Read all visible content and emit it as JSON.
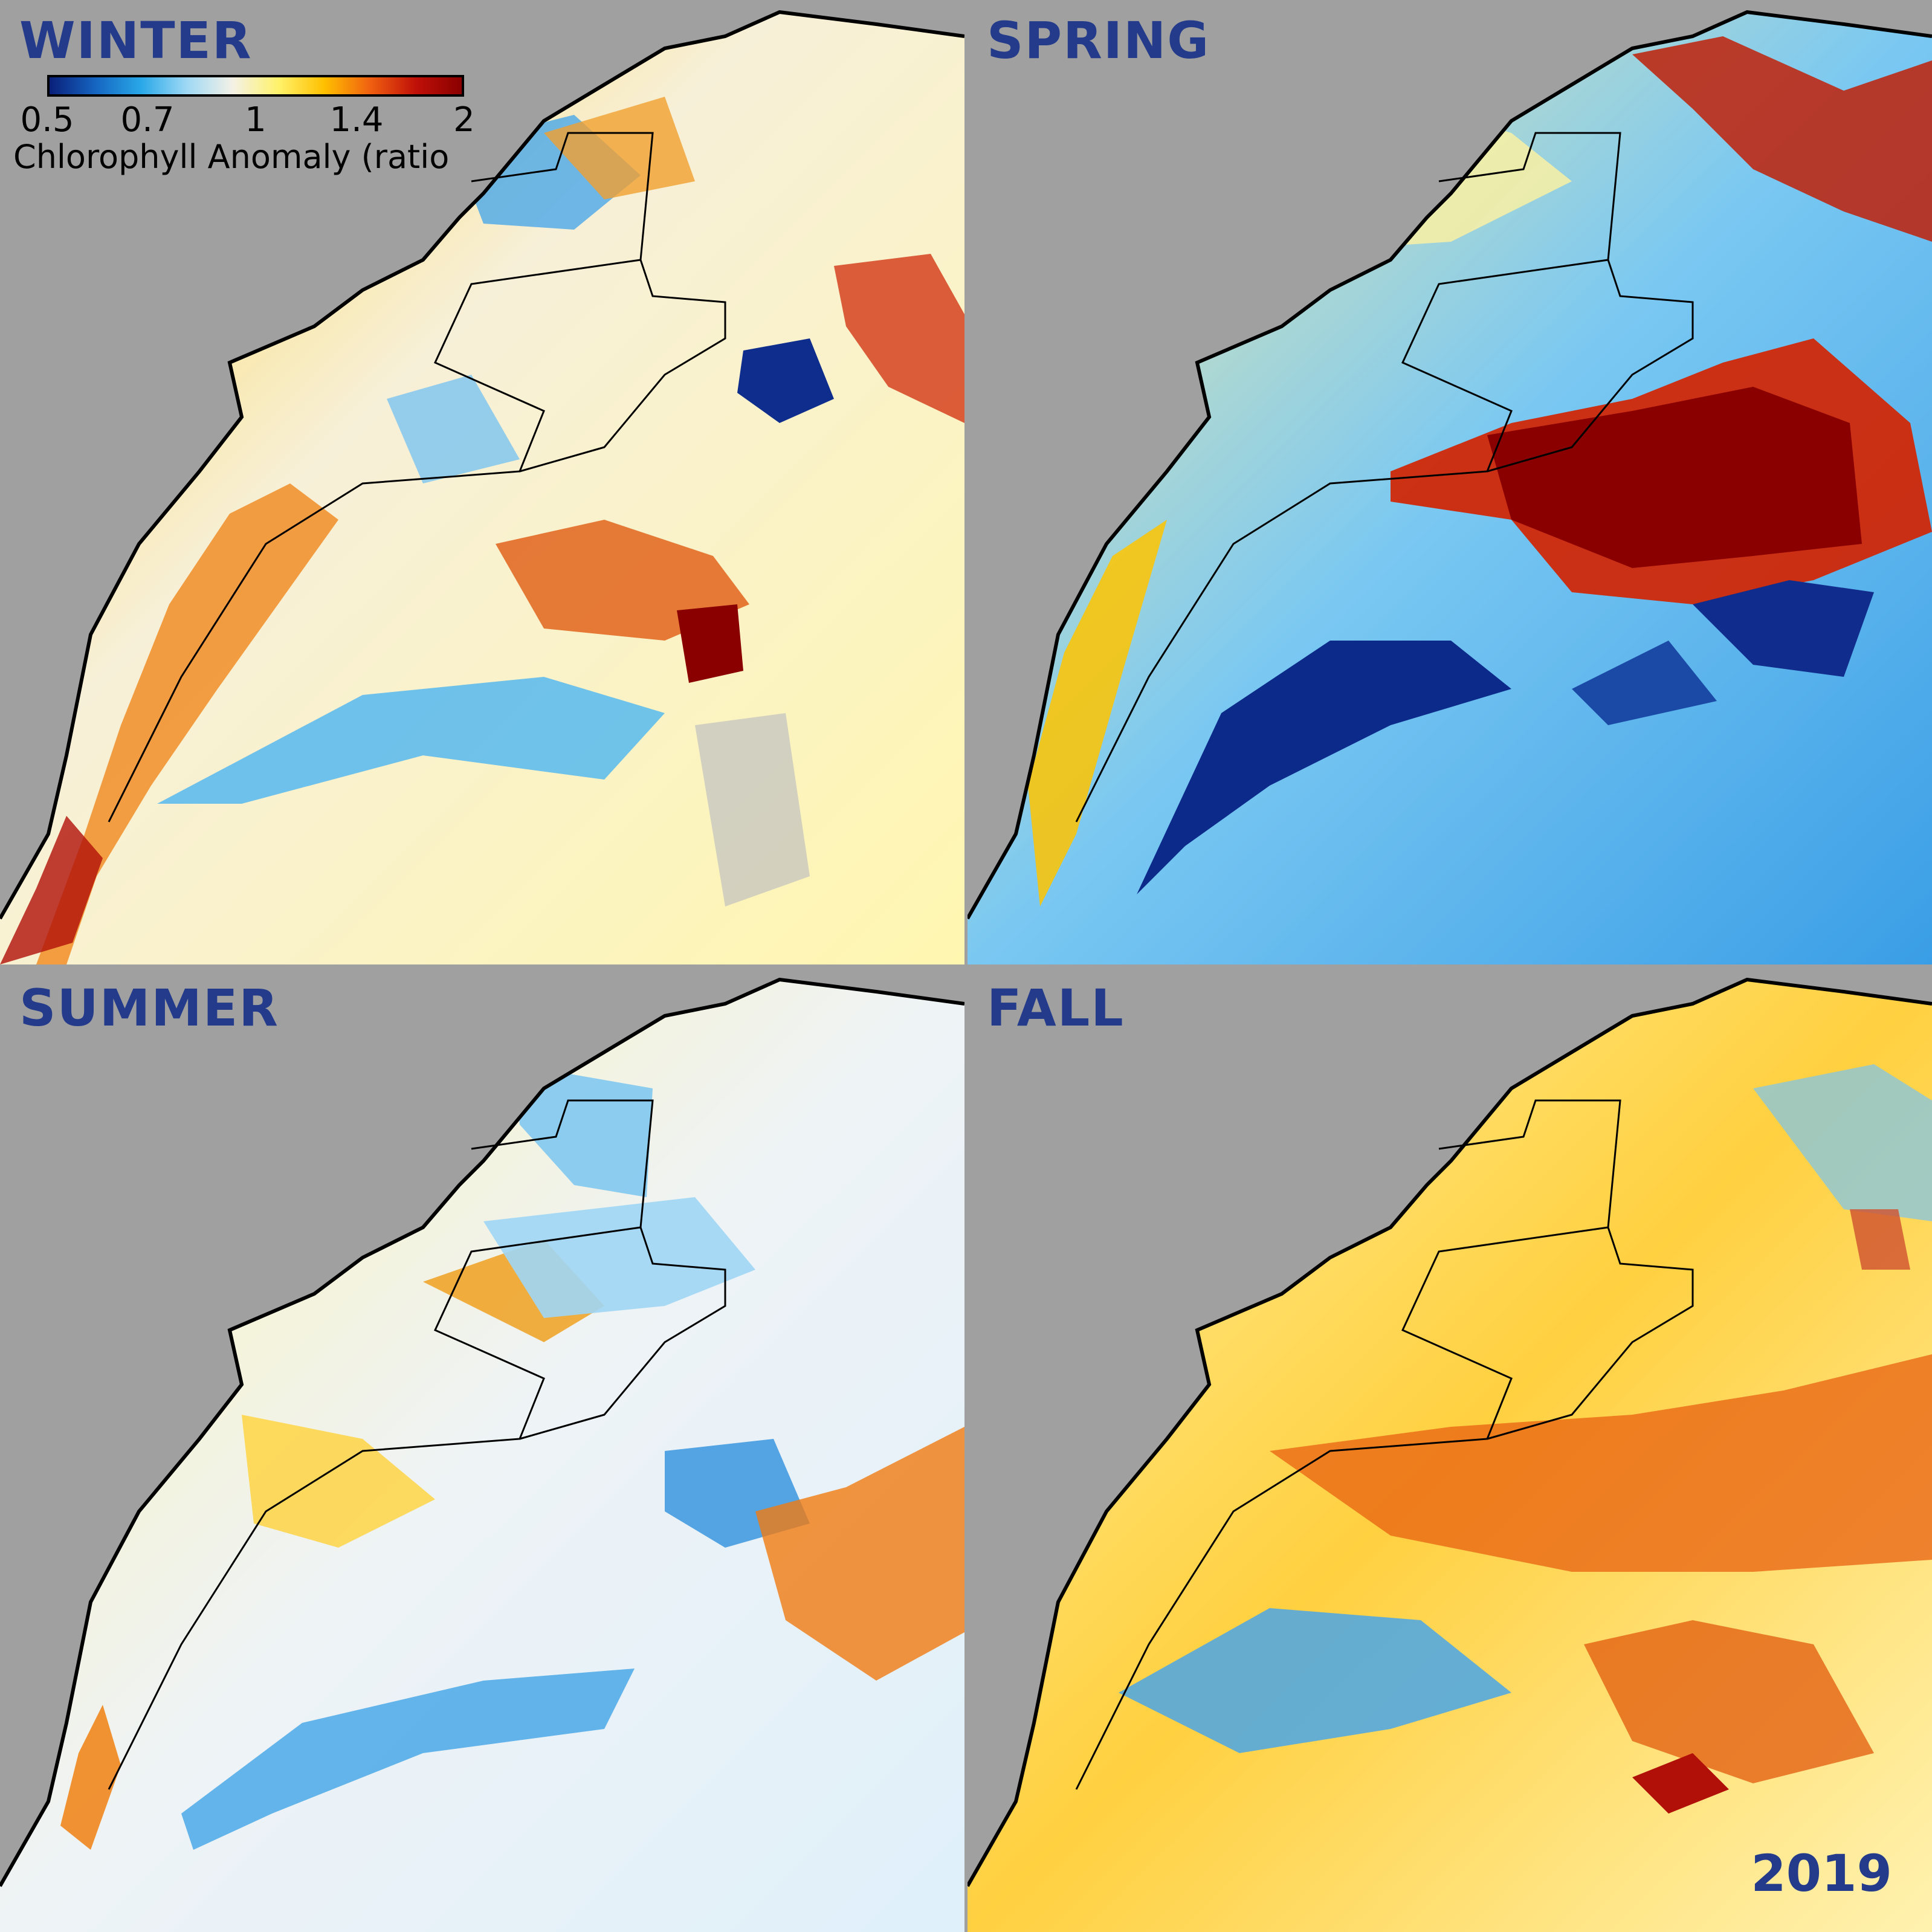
{
  "panels": [
    {
      "season": "WINTER"
    },
    {
      "season": "SPRING"
    },
    {
      "season": "SUMMER"
    },
    {
      "season": "FALL"
    }
  ],
  "year": "2019",
  "colorbar": {
    "title": "Chlorophyll Anomaly (ratio",
    "ticks": [
      "0.5",
      "0.7",
      "1",
      "1.4",
      "2"
    ],
    "scale": "log",
    "range": [
      0.5,
      2
    ],
    "colors": [
      "#0a1f7a",
      "#1565c0",
      "#29a8e8",
      "#9fd9f5",
      "#f4f1e6",
      "#fff26a",
      "#ffc000",
      "#f06010",
      "#c01008",
      "#8a0000"
    ]
  },
  "colors": {
    "land": "#a0a0a0",
    "coastline": "#000000",
    "label": "#233b8a"
  }
}
